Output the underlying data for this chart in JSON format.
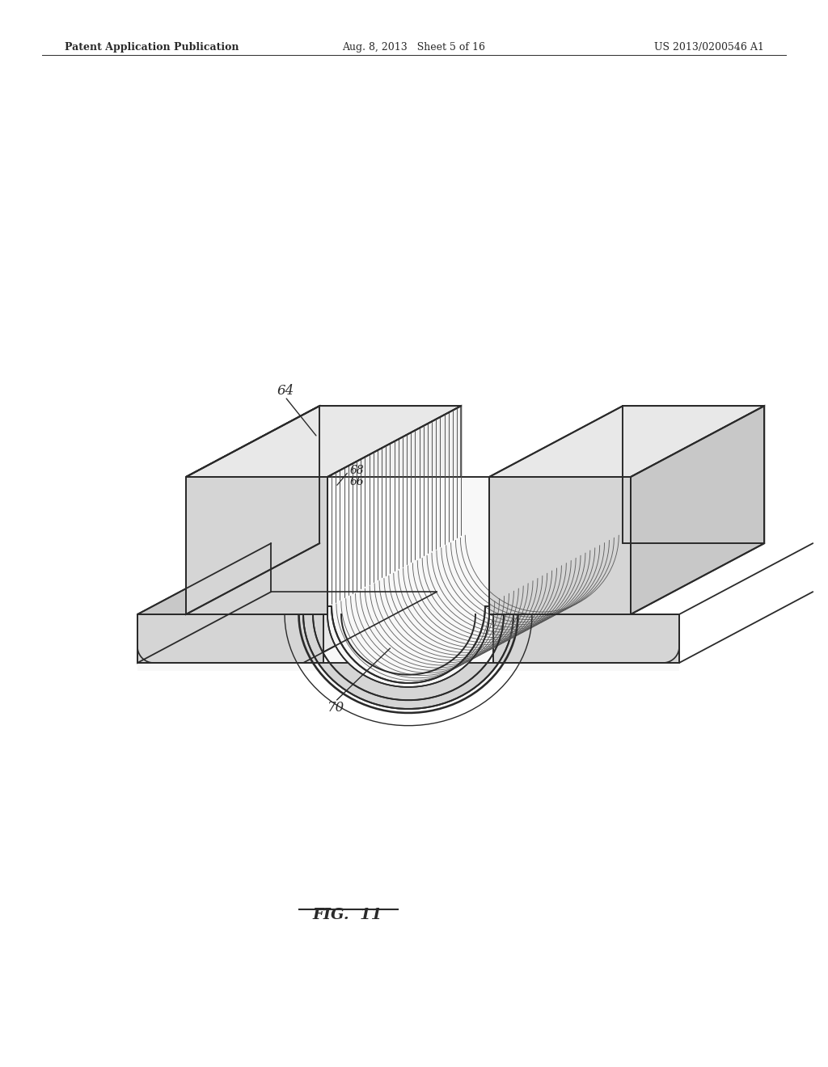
{
  "background_color": "#ffffff",
  "line_color": "#2a2a2a",
  "col_top": "#e8e8e8",
  "col_front": "#d5d5d5",
  "col_side_right": "#c8c8c8",
  "col_inner": "#f0f0f0",
  "col_vent": "#555555",
  "header_left": "Patent Application Publication",
  "header_center": "Aug. 8, 2013   Sheet 5 of 16",
  "header_right": "US 2013/0200546 A1",
  "figure_label": "FIG.  11",
  "label_64": "64",
  "label_66": "66",
  "label_68": "68",
  "label_70": "70"
}
